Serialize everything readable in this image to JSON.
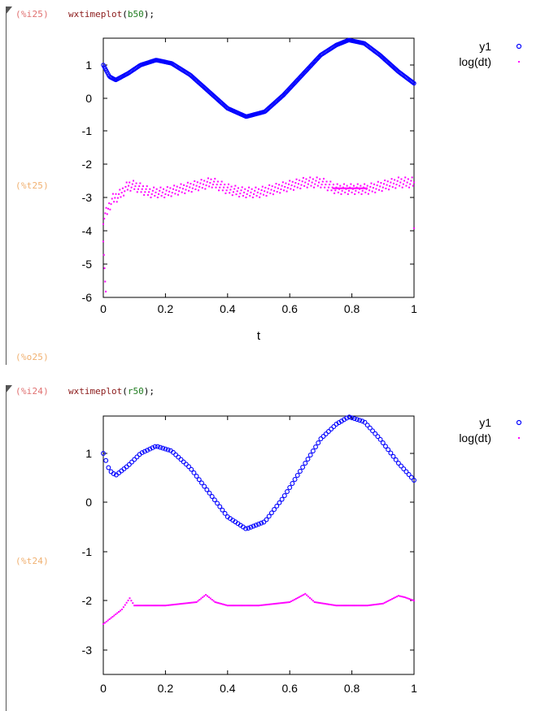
{
  "cells": [
    {
      "input_label": "(%i25)",
      "code_fn": "wxtimeplot",
      "code_arg": "b50",
      "code_open": "(",
      "code_close": ");",
      "plot_label": "(%t25)",
      "output_label": "(%o25)",
      "chart_data": {
        "type": "scatter",
        "x_axis": {
          "label": "t",
          "ticks": [
            "0",
            "0.2",
            "0.4",
            "0.6",
            "0.8",
            "1"
          ],
          "range": [
            0,
            1
          ]
        },
        "y_axis": {
          "ticks": [
            "1",
            "0",
            "-1",
            "-2",
            "-3",
            "-4",
            "-5",
            "-6"
          ],
          "range": [
            -6,
            1.8
          ]
        },
        "legend": {
          "position": "top-right",
          "entries": [
            {
              "name": "y1",
              "marker": "open-circle",
              "color": "#0000ff"
            },
            {
              "name": "log(dt)",
              "marker": "dot",
              "color": "#ff00ff"
            }
          ]
        },
        "series": [
          {
            "name": "y1",
            "density": "dense",
            "x": [
              0,
              0.02,
              0.04,
              0.08,
              0.12,
              0.17,
              0.22,
              0.28,
              0.34,
              0.4,
              0.46,
              0.52,
              0.58,
              0.64,
              0.7,
              0.75,
              0.79,
              0.84,
              0.89,
              0.95,
              1.0
            ],
            "values": [
              1.0,
              0.65,
              0.55,
              0.75,
              1.0,
              1.15,
              1.05,
              0.7,
              0.2,
              -0.3,
              -0.55,
              -0.4,
              0.1,
              0.7,
              1.3,
              1.6,
              1.75,
              1.65,
              1.3,
              0.8,
              0.45
            ]
          },
          {
            "name": "log(dt)",
            "x": [
              0,
              0.01,
              0.02,
              0.03,
              0.05,
              0.08,
              0.1,
              0.15,
              0.2,
              0.25,
              0.3,
              0.35,
              0.4,
              0.45,
              0.5,
              0.55,
              0.6,
              0.65,
              0.7,
              0.75,
              0.8,
              0.85,
              0.9,
              0.95,
              1.0
            ],
            "values": [
              -3.6,
              -3.4,
              -3.2,
              -3.0,
              -2.9,
              -2.6,
              -2.6,
              -2.8,
              -2.8,
              -2.7,
              -2.6,
              -2.5,
              -2.7,
              -2.8,
              -2.8,
              -2.7,
              -2.6,
              -2.5,
              -2.5,
              -2.7,
              -2.7,
              -2.7,
              -2.6,
              -2.5,
              -2.5
            ]
          }
        ]
      }
    },
    {
      "input_label": "(%i24)",
      "code_fn": "wxtimeplot",
      "code_arg": "r50",
      "code_open": "(",
      "code_close": ");",
      "plot_label": "(%t24)",
      "chart_data": {
        "type": "scatter",
        "x_axis": {
          "ticks": [
            "0",
            "0.2",
            "0.4",
            "0.6",
            "0.8",
            "1"
          ],
          "range": [
            0,
            1
          ]
        },
        "y_axis": {
          "ticks": [
            "1",
            "0",
            "-1",
            "-2",
            "-3"
          ],
          "range": [
            -3.5,
            1.8
          ]
        },
        "legend": {
          "position": "top-right",
          "entries": [
            {
              "name": "y1",
              "marker": "open-circle",
              "color": "#0000ff"
            },
            {
              "name": "log(dt)",
              "marker": "dot",
              "color": "#ff00ff"
            }
          ]
        },
        "series": [
          {
            "name": "y1",
            "density": "sparse",
            "x": [
              0,
              0.02,
              0.04,
              0.08,
              0.12,
              0.17,
              0.22,
              0.28,
              0.34,
              0.4,
              0.46,
              0.52,
              0.58,
              0.64,
              0.7,
              0.75,
              0.79,
              0.84,
              0.89,
              0.95,
              1.0
            ],
            "values": [
              1.0,
              0.65,
              0.55,
              0.75,
              1.0,
              1.15,
              1.05,
              0.7,
              0.2,
              -0.3,
              -0.55,
              -0.4,
              0.1,
              0.7,
              1.3,
              1.6,
              1.75,
              1.65,
              1.3,
              0.8,
              0.45
            ]
          },
          {
            "name": "log(dt)",
            "x": [
              0,
              0.03,
              0.06,
              0.085,
              0.1,
              0.2,
              0.3,
              0.33,
              0.36,
              0.4,
              0.5,
              0.6,
              0.65,
              0.68,
              0.75,
              0.85,
              0.9,
              0.95,
              0.97,
              1.0
            ],
            "values": [
              -2.5,
              -2.35,
              -2.2,
              -1.97,
              -2.12,
              -2.12,
              -2.05,
              -1.9,
              -2.05,
              -2.12,
              -2.12,
              -2.05,
              -1.88,
              -2.05,
              -2.12,
              -2.12,
              -2.08,
              -1.92,
              -1.95,
              -2.02
            ]
          }
        ]
      }
    }
  ]
}
